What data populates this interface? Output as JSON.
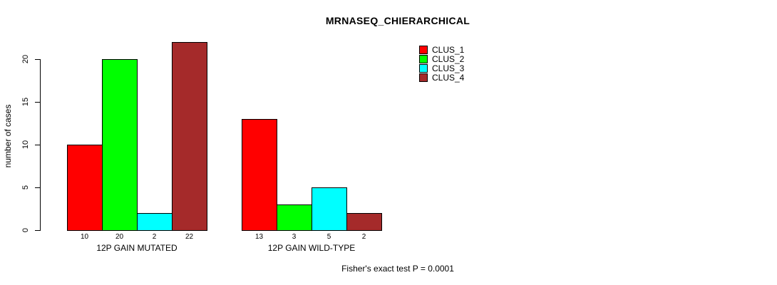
{
  "chart_data": {
    "type": "bar",
    "title": "MRNASEQ_CHIERARCHICAL",
    "ylabel": "number of cases",
    "xlabel": "",
    "ylim": [
      0,
      22
    ],
    "yticks": [
      0,
      5,
      10,
      15,
      20
    ],
    "grid": false,
    "legend_position": "top-right",
    "bar_value_labels_shown": true,
    "series": [
      {
        "name": "CLUS_1",
        "color": "#FF0000"
      },
      {
        "name": "CLUS_2",
        "color": "#00FF00"
      },
      {
        "name": "CLUS_3",
        "color": "#00FFFF"
      },
      {
        "name": "CLUS_4",
        "color": "#A52A2A"
      }
    ],
    "groups": [
      {
        "label": "12P GAIN MUTATED",
        "values": [
          10,
          20,
          2,
          22
        ]
      },
      {
        "label": "12P GAIN WILD-TYPE",
        "values": [
          13,
          3,
          5,
          2
        ]
      }
    ],
    "annotation": "Fisher's exact test P = 0.0001"
  }
}
